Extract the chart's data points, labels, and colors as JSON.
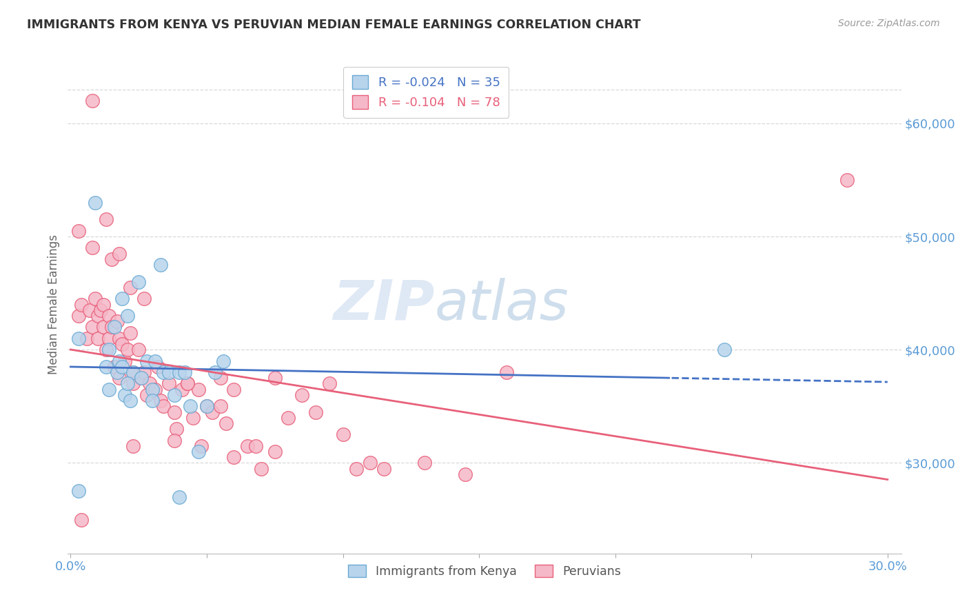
{
  "title": "IMMIGRANTS FROM KENYA VS PERUVIAN MEDIAN FEMALE EARNINGS CORRELATION CHART",
  "source": "Source: ZipAtlas.com",
  "ylabel": "Median Female Earnings",
  "right_yticks": [
    30000,
    40000,
    50000,
    60000
  ],
  "right_yticklabels": [
    "$30,000",
    "$40,000",
    "$50,000",
    "$60,000"
  ],
  "xlim": [
    -0.001,
    0.305
  ],
  "ylim": [
    22000,
    66000
  ],
  "legend_R1": "-0.024",
  "legend_N1": "35",
  "legend_R2": "-0.104",
  "legend_N2": "78",
  "kenya_fill": "#b8d4ec",
  "kenya_edge": "#6aaad4",
  "peru_fill": "#f5b8c8",
  "peru_edge": "#e8607a",
  "kenya_line_color": "#4472c4",
  "peru_line_color": "#e8607a",
  "watermark_zip": "ZIP",
  "watermark_atlas": "atlas",
  "watermark_color_zip": "#c8ddf0",
  "watermark_color_atlas": "#a0bcd8",
  "kenya_x": [
    0.003,
    0.009,
    0.013,
    0.014,
    0.016,
    0.017,
    0.018,
    0.019,
    0.02,
    0.021,
    0.022,
    0.023,
    0.025,
    0.026,
    0.028,
    0.03,
    0.031,
    0.033,
    0.034,
    0.036,
    0.038,
    0.04,
    0.042,
    0.044,
    0.047,
    0.05,
    0.053,
    0.056,
    0.014,
    0.019,
    0.021,
    0.03,
    0.04,
    0.24,
    0.003
  ],
  "kenya_y": [
    41000,
    53000,
    38500,
    40000,
    42000,
    38000,
    39000,
    38500,
    36000,
    43000,
    35500,
    38000,
    46000,
    37500,
    39000,
    36500,
    39000,
    47500,
    38000,
    38000,
    36000,
    38000,
    38000,
    35000,
    31000,
    35000,
    38000,
    39000,
    36500,
    44500,
    37000,
    35500,
    27000,
    40000,
    27500
  ],
  "peru_x": [
    0.003,
    0.004,
    0.006,
    0.007,
    0.008,
    0.009,
    0.01,
    0.01,
    0.011,
    0.012,
    0.012,
    0.013,
    0.014,
    0.014,
    0.015,
    0.015,
    0.016,
    0.017,
    0.018,
    0.018,
    0.019,
    0.02,
    0.021,
    0.022,
    0.023,
    0.023,
    0.025,
    0.026,
    0.027,
    0.028,
    0.029,
    0.031,
    0.033,
    0.034,
    0.036,
    0.038,
    0.039,
    0.041,
    0.043,
    0.045,
    0.047,
    0.05,
    0.052,
    0.055,
    0.057,
    0.06,
    0.065,
    0.07,
    0.075,
    0.08,
    0.085,
    0.09,
    0.095,
    0.1,
    0.105,
    0.11,
    0.115,
    0.13,
    0.145,
    0.16,
    0.003,
    0.008,
    0.013,
    0.018,
    0.022,
    0.027,
    0.032,
    0.043,
    0.048,
    0.055,
    0.06,
    0.068,
    0.075,
    0.285,
    0.004,
    0.008,
    0.023,
    0.038
  ],
  "peru_y": [
    43000,
    44000,
    41000,
    43500,
    42000,
    44500,
    43000,
    41000,
    43500,
    44000,
    42000,
    40000,
    43000,
    41000,
    48000,
    42000,
    38500,
    42500,
    41000,
    37500,
    40500,
    39000,
    40000,
    41500,
    38000,
    37000,
    40000,
    37500,
    38000,
    36000,
    37000,
    36500,
    35500,
    35000,
    37000,
    34500,
    33000,
    36500,
    37000,
    34000,
    36500,
    35000,
    34500,
    35000,
    33500,
    30500,
    31500,
    29500,
    31000,
    34000,
    36000,
    34500,
    37000,
    32500,
    29500,
    30000,
    29500,
    30000,
    29000,
    38000,
    50500,
    49000,
    51500,
    48500,
    45500,
    44500,
    38500,
    37000,
    31500,
    37500,
    36500,
    31500,
    37500,
    55000,
    25000,
    62000,
    31500,
    32000
  ]
}
